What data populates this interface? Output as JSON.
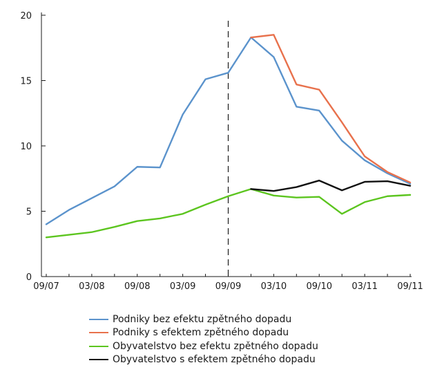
{
  "chart_data": {
    "type": "line",
    "title": "",
    "xlabel": "",
    "ylabel": "",
    "ylim": [
      0,
      20
    ],
    "yticks": [
      0,
      5,
      10,
      15,
      20
    ],
    "x": [
      "09/07",
      "12/07",
      "03/08",
      "06/08",
      "09/08",
      "12/08",
      "03/09",
      "06/09",
      "09/09",
      "12/09",
      "03/10",
      "06/10",
      "09/10",
      "12/10",
      "03/11",
      "06/11",
      "09/11"
    ],
    "xtick_labels": [
      "09/07",
      "03/08",
      "09/08",
      "03/09",
      "09/09",
      "03/10",
      "09/10",
      "03/11",
      "09/11"
    ],
    "vline_at": "09/09",
    "legend_position": "bottom",
    "series": [
      {
        "name": "Podniky bez efektu zpětného dopadu",
        "color": "#5b93cc",
        "values": [
          4.0,
          5.1,
          6.0,
          6.9,
          8.4,
          8.35,
          12.4,
          15.1,
          15.6,
          18.3,
          16.8,
          13.0,
          12.7,
          10.4,
          8.9,
          7.9,
          7.1
        ]
      },
      {
        "name": "Podniky s efektem zpětného dopadu",
        "color": "#e8714c",
        "values": [
          null,
          null,
          null,
          null,
          null,
          null,
          null,
          null,
          null,
          18.3,
          18.5,
          14.7,
          14.3,
          11.8,
          9.2,
          8.0,
          7.2
        ]
      },
      {
        "name": "Obyvatelstvo bez efektu zpětného dopadu",
        "color": "#5cc51f",
        "values": [
          3.0,
          3.2,
          3.4,
          3.8,
          4.25,
          4.45,
          4.8,
          5.5,
          6.15,
          6.7,
          6.2,
          6.05,
          6.1,
          4.8,
          5.7,
          6.15,
          6.25
        ]
      },
      {
        "name": "Obyvatelstvo s efektem zpětného dopadu",
        "color": "#111111",
        "values": [
          null,
          null,
          null,
          null,
          null,
          null,
          null,
          null,
          null,
          6.7,
          6.55,
          6.85,
          7.35,
          6.6,
          7.25,
          7.3,
          6.95
        ]
      }
    ]
  }
}
